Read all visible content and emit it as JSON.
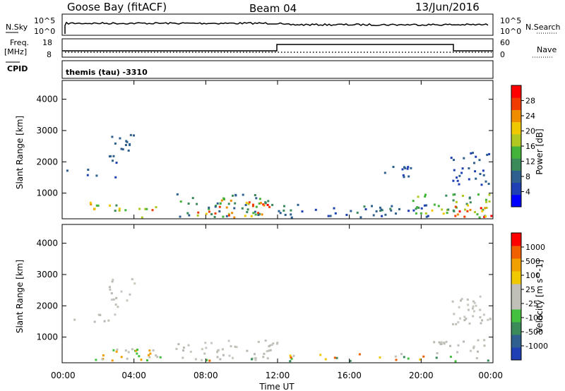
{
  "header": {
    "station": "Goose Bay (fitACF)",
    "beam": "Beam 04",
    "date": "13/Jun/2016"
  },
  "strip": {
    "nsky_label": "N.Sky",
    "nsky_ticks": [
      "10^5",
      "10^0"
    ],
    "nsearch_label": "N.Search",
    "nsearch_ticks": [
      "10^5",
      "10^0"
    ],
    "freq_label": "Freq.",
    "freq_unit": "[MHz]",
    "freq_ticks": [
      "18",
      "8"
    ],
    "nave_label": "Nave",
    "nave_ticks": [
      "60",
      "0"
    ],
    "cpid_label": "CPID",
    "cpid_text": "themis (tau) -3310"
  },
  "time_axis": {
    "ticks": [
      "00:00",
      "04:00",
      "08:00",
      "12:00",
      "16:00",
      "20:00",
      "00:00"
    ],
    "label": "Time UT",
    "range_hours": [
      0,
      24
    ]
  },
  "chart_data": [
    {
      "type": "heatmap",
      "name": "power",
      "ylabel": "Slant Range [km]",
      "ylim": [
        180,
        4600
      ],
      "yticks": [
        "4000",
        "3000",
        "2000",
        "1000"
      ],
      "ytick_values": [
        4000,
        3000,
        2000,
        1000
      ],
      "colorbar": {
        "label": "Power [dB]",
        "ticks": [
          "28",
          "24",
          "20",
          "16",
          "12",
          "8",
          "4"
        ],
        "range": [
          0,
          30
        ],
        "colors": [
          "#0000ff",
          "#1f3fb5",
          "#2e5f8f",
          "#3a8a5a",
          "#44b33a",
          "#b0c820",
          "#f0c800",
          "#f08c00",
          "#f03c00",
          "#ff0000"
        ]
      },
      "regions": [
        {
          "t": [
            0.2,
            1.5
          ],
          "r": [
            1600,
            1800
          ],
          "v": [
            5,
            9
          ]
        },
        {
          "t": [
            1.5,
            3.0
          ],
          "r": [
            1500,
            1700
          ],
          "v": [
            5,
            9
          ]
        },
        {
          "t": [
            2.5,
            4.0
          ],
          "r": [
            2000,
            2900
          ],
          "v": [
            5,
            9
          ]
        },
        {
          "t": [
            1.5,
            3.5
          ],
          "r": [
            400,
            800
          ],
          "v": [
            10,
            24
          ]
        },
        {
          "t": [
            3.0,
            5.5
          ],
          "r": [
            200,
            600
          ],
          "v": [
            12,
            26
          ]
        },
        {
          "t": [
            6.3,
            12.0
          ],
          "r": [
            200,
            1000
          ],
          "v": [
            6,
            14
          ]
        },
        {
          "t": [
            7.5,
            11.5
          ],
          "r": [
            250,
            800
          ],
          "v": [
            16,
            29
          ]
        },
        {
          "t": [
            12.0,
            20.5
          ],
          "r": [
            200,
            700
          ],
          "v": [
            4,
            10
          ]
        },
        {
          "t": [
            17.5,
            19.5
          ],
          "r": [
            1500,
            2000
          ],
          "v": [
            4,
            9
          ]
        },
        {
          "t": [
            19.5,
            24.0
          ],
          "r": [
            200,
            1000
          ],
          "v": [
            8,
            18
          ]
        },
        {
          "t": [
            20.5,
            24.0
          ],
          "r": [
            200,
            700
          ],
          "v": [
            18,
            29
          ]
        },
        {
          "t": [
            21.5,
            24.0
          ],
          "r": [
            1300,
            2400
          ],
          "v": [
            4,
            8
          ]
        }
      ]
    },
    {
      "type": "heatmap",
      "name": "velocity",
      "ylabel": "Slant Range [km]",
      "ylim": [
        180,
        4600
      ],
      "yticks": [
        "4000",
        "3000",
        "2000",
        "1000"
      ],
      "ytick_values": [
        4000,
        3000,
        2000,
        1000
      ],
      "colorbar": {
        "label": "Velocity [m s^-1]",
        "ticks": [
          "1000",
          "500",
          "100",
          "25",
          "-25",
          "-100",
          "-500",
          "-1000"
        ],
        "colors": [
          "#1f3fb5",
          "#2e5f8f",
          "#3a8a5a",
          "#44c040",
          "#c0c0b8",
          "#c0c0b8",
          "#f0c800",
          "#f0a000",
          "#f06000",
          "#ff0000"
        ]
      },
      "regions": [
        {
          "t": [
            0.2,
            3.0
          ],
          "r": [
            1500,
            1800
          ],
          "v": "grey"
        },
        {
          "t": [
            2.5,
            4.0
          ],
          "r": [
            2000,
            2900
          ],
          "v": "grey"
        },
        {
          "t": [
            1.5,
            5.5
          ],
          "r": [
            200,
            700
          ],
          "v": "grey-green"
        },
        {
          "t": [
            6.3,
            12.0
          ],
          "r": [
            300,
            950
          ],
          "v": "grey"
        },
        {
          "t": [
            6.3,
            12.0
          ],
          "r": [
            200,
            350
          ],
          "v": "green"
        },
        {
          "t": [
            12.0,
            20.5
          ],
          "r": [
            200,
            500
          ],
          "v": "green"
        },
        {
          "t": [
            20.5,
            24.0
          ],
          "r": [
            500,
            950
          ],
          "v": "grey"
        },
        {
          "t": [
            20.5,
            24.0
          ],
          "r": [
            200,
            500
          ],
          "v": "green"
        },
        {
          "t": [
            21.5,
            24.0
          ],
          "r": [
            1400,
            2400
          ],
          "v": "grey"
        }
      ]
    }
  ]
}
